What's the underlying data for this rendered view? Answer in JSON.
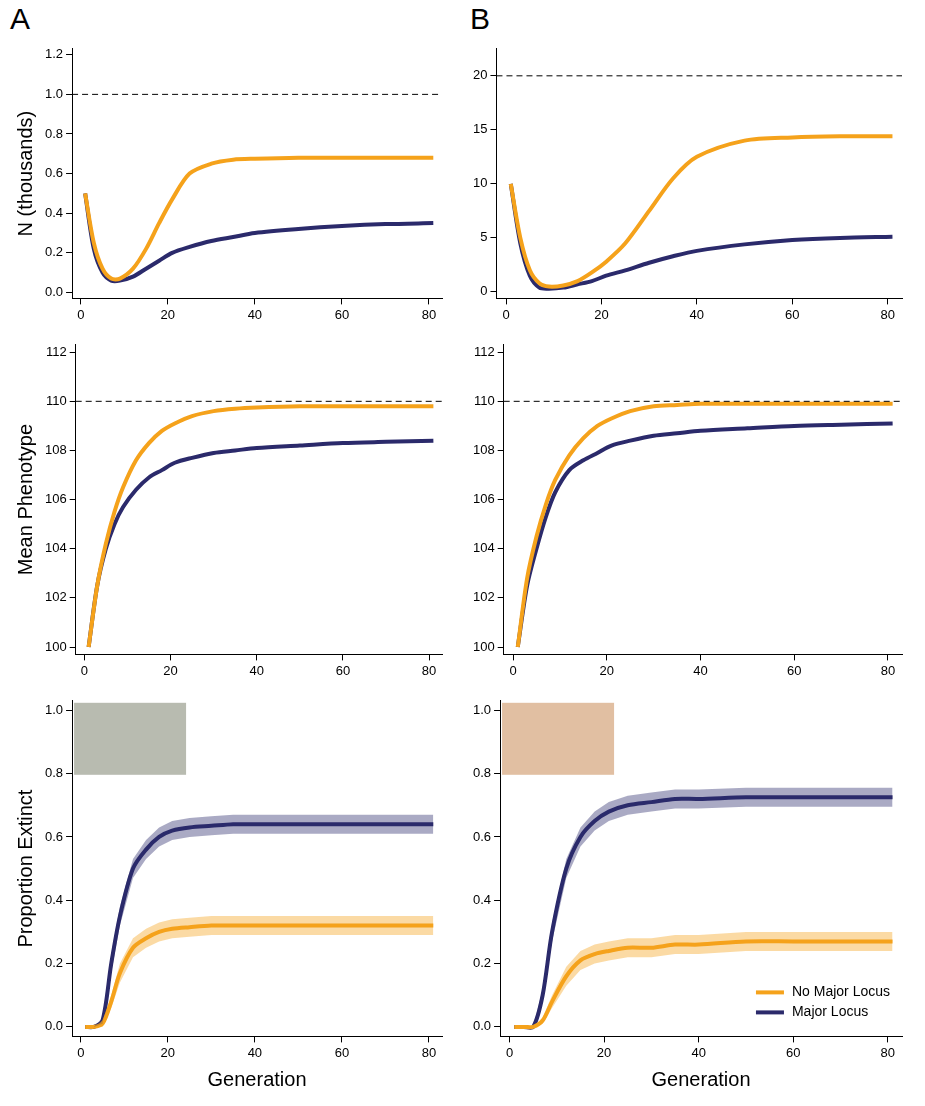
{
  "chart_data": [
    {
      "type": "line",
      "panel_label": "A",
      "y_label": "N (thousands)",
      "x": [
        1,
        3,
        5,
        7,
        9,
        12,
        15,
        18,
        21,
        25,
        30,
        35,
        40,
        50,
        60,
        70,
        81
      ],
      "xlim": [
        -2,
        83
      ],
      "xticks": [
        0,
        20,
        40,
        60,
        80
      ],
      "ylim": [
        -0.03,
        1.23
      ],
      "yticks": [
        {
          "value": 0,
          "label": "0.0"
        },
        {
          "value": 0.2,
          "label": "0.2"
        },
        {
          "value": 0.4,
          "label": "0.4"
        },
        {
          "value": 0.6,
          "label": "0.6"
        },
        {
          "value": 0.8,
          "label": "0.8"
        },
        {
          "value": 1,
          "label": "1.0"
        },
        {
          "value": 1.2,
          "label": "1.2"
        }
      ],
      "grid": false,
      "reference_lines": [
        {
          "y": 1,
          "line_style": "dashed",
          "color": "#000000"
        }
      ],
      "series": [
        {
          "color": "#f5a21b",
          "values": [
            0.5,
            0.25,
            0.12,
            0.07,
            0.07,
            0.12,
            0.22,
            0.35,
            0.47,
            0.6,
            0.65,
            0.67,
            0.675,
            0.68,
            0.68,
            0.68,
            0.68
          ]
        },
        {
          "color": "#2b2a6b",
          "values": [
            0.5,
            0.22,
            0.1,
            0.06,
            0.06,
            0.08,
            0.12,
            0.16,
            0.2,
            0.23,
            0.26,
            0.28,
            0.3,
            0.32,
            0.335,
            0.345,
            0.35
          ]
        }
      ]
    },
    {
      "type": "line",
      "panel_label": "B",
      "x": [
        1,
        3,
        5,
        7,
        9,
        12,
        15,
        18,
        21,
        25,
        30,
        35,
        40,
        50,
        60,
        70,
        81
      ],
      "xlim": [
        -2,
        83
      ],
      "xticks": [
        0,
        20,
        40,
        60,
        80
      ],
      "ylim": [
        -0.6,
        22.5
      ],
      "yticks": [
        0,
        5,
        10,
        15,
        20
      ],
      "grid": false,
      "reference_lines": [
        {
          "y": 20,
          "line_style": "dashed",
          "color": "#000000"
        }
      ],
      "series": [
        {
          "color": "#f5a21b",
          "values": [
            10,
            5,
            2,
            0.8,
            0.5,
            0.6,
            1.0,
            1.8,
            2.8,
            4.5,
            7.5,
            10.5,
            12.5,
            14,
            14.3,
            14.4,
            14.4
          ]
        },
        {
          "color": "#2b2a6b",
          "values": [
            10,
            4.5,
            1.5,
            0.4,
            0.3,
            0.4,
            0.7,
            1.0,
            1.5,
            2.0,
            2.7,
            3.3,
            3.8,
            4.4,
            4.8,
            5.0,
            5.1
          ]
        }
      ]
    },
    {
      "type": "line",
      "y_label": "Mean Phenotype",
      "x": [
        1,
        3,
        5,
        7,
        9,
        12,
        15,
        18,
        21,
        25,
        30,
        35,
        40,
        50,
        60,
        70,
        81
      ],
      "xlim": [
        -2,
        83
      ],
      "xticks": [
        0,
        20,
        40,
        60,
        80
      ],
      "ylim": [
        99.7,
        112.3
      ],
      "yticks": [
        100,
        102,
        104,
        106,
        108,
        110,
        112
      ],
      "grid": false,
      "reference_lines": [
        {
          "y": 110,
          "line_style": "dashed",
          "color": "#000000"
        }
      ],
      "series": [
        {
          "color": "#f5a21b",
          "values": [
            100,
            102.5,
            104.2,
            105.5,
            106.5,
            107.6,
            108.3,
            108.8,
            109.1,
            109.4,
            109.6,
            109.7,
            109.75,
            109.8,
            109.8,
            109.8,
            109.8
          ]
        },
        {
          "color": "#2b2a6b",
          "values": [
            100,
            102.5,
            104,
            105,
            105.7,
            106.4,
            106.9,
            107.2,
            107.5,
            107.7,
            107.9,
            108.0,
            108.1,
            108.2,
            108.3,
            108.35,
            108.4
          ]
        }
      ]
    },
    {
      "type": "line",
      "x": [
        1,
        3,
        5,
        7,
        9,
        12,
        15,
        18,
        21,
        25,
        30,
        35,
        40,
        50,
        60,
        70,
        81
      ],
      "xlim": [
        -2,
        83
      ],
      "xticks": [
        0,
        20,
        40,
        60,
        80
      ],
      "ylim": [
        99.7,
        112.3
      ],
      "yticks": [
        100,
        102,
        104,
        106,
        108,
        110,
        112
      ],
      "grid": false,
      "reference_lines": [
        {
          "y": 110,
          "line_style": "dashed",
          "color": "#000000"
        }
      ],
      "series": [
        {
          "color": "#f5a21b",
          "values": [
            100,
            102.8,
            104.5,
            105.8,
            106.8,
            107.8,
            108.5,
            109.0,
            109.3,
            109.6,
            109.8,
            109.85,
            109.9,
            109.9,
            109.9,
            109.9,
            109.9
          ]
        },
        {
          "color": "#2b2a6b",
          "values": [
            100,
            102.5,
            104,
            105.3,
            106.3,
            107.2,
            107.6,
            107.9,
            108.2,
            108.4,
            108.6,
            108.7,
            108.8,
            108.9,
            109.0,
            109.05,
            109.1
          ]
        }
      ]
    },
    {
      "type": "line",
      "y_label": "Proportion Extinct",
      "x_label": "Generation",
      "x": [
        1,
        3,
        5,
        7,
        9,
        12,
        15,
        18,
        21,
        25,
        30,
        35,
        40,
        50,
        60,
        70,
        81
      ],
      "xlim": [
        -2,
        83
      ],
      "xticks": [
        0,
        20,
        40,
        60,
        80
      ],
      "ylim": [
        -0.03,
        1.03
      ],
      "yticks": [
        {
          "value": 0,
          "label": "0.0"
        },
        {
          "value": 0.2,
          "label": "0.2"
        },
        {
          "value": 0.4,
          "label": "0.4"
        },
        {
          "value": 0.6,
          "label": "0.6"
        },
        {
          "value": 0.8,
          "label": "0.8"
        },
        {
          "value": 1,
          "label": "1.0"
        }
      ],
      "grid": false,
      "series": [
        {
          "color": "#f5a21b",
          "values": [
            0,
            0,
            0.01,
            0.08,
            0.17,
            0.25,
            0.28,
            0.3,
            0.31,
            0.315,
            0.32,
            0.32,
            0.32,
            0.32,
            0.32,
            0.32,
            0.32
          ],
          "lower": [
            0,
            0,
            0.0,
            0.06,
            0.14,
            0.22,
            0.25,
            0.27,
            0.28,
            0.285,
            0.29,
            0.29,
            0.29,
            0.29,
            0.29,
            0.29,
            0.29
          ],
          "upper": [
            0,
            0,
            0.02,
            0.1,
            0.2,
            0.28,
            0.31,
            0.33,
            0.34,
            0.345,
            0.35,
            0.35,
            0.35,
            0.35,
            0.35,
            0.35,
            0.35
          ]
        },
        {
          "color": "#2b2a6b",
          "values": [
            0,
            0,
            0.02,
            0.2,
            0.35,
            0.5,
            0.56,
            0.6,
            0.62,
            0.63,
            0.635,
            0.64,
            0.64,
            0.64,
            0.64,
            0.64,
            0.64
          ],
          "lower": [
            0,
            0,
            0.01,
            0.17,
            0.32,
            0.47,
            0.53,
            0.57,
            0.59,
            0.6,
            0.605,
            0.61,
            0.61,
            0.61,
            0.61,
            0.61,
            0.61
          ],
          "upper": [
            0,
            0,
            0.03,
            0.23,
            0.38,
            0.53,
            0.59,
            0.63,
            0.65,
            0.66,
            0.665,
            0.67,
            0.67,
            0.67,
            0.67,
            0.67,
            0.67
          ]
        }
      ]
    },
    {
      "type": "line",
      "x_label": "Generation",
      "x": [
        1,
        3,
        5,
        7,
        9,
        12,
        15,
        18,
        21,
        25,
        30,
        35,
        40,
        50,
        60,
        70,
        81
      ],
      "xlim": [
        -2,
        83
      ],
      "xticks": [
        0,
        20,
        40,
        60,
        80
      ],
      "ylim": [
        -0.03,
        1.03
      ],
      "yticks": [
        {
          "value": 0,
          "label": "0.0"
        },
        {
          "value": 0.2,
          "label": "0.2"
        },
        {
          "value": 0.4,
          "label": "0.4"
        },
        {
          "value": 0.6,
          "label": "0.6"
        },
        {
          "value": 0.8,
          "label": "0.8"
        },
        {
          "value": 1,
          "label": "1.0"
        }
      ],
      "grid": false,
      "legend": "lower right",
      "series": [
        {
          "name": "No Major Locus",
          "color": "#f5a21b",
          "values": [
            0,
            0,
            0,
            0.02,
            0.08,
            0.16,
            0.21,
            0.23,
            0.24,
            0.25,
            0.25,
            0.26,
            0.26,
            0.27,
            0.27,
            0.27,
            0.27
          ],
          "lower": [
            0,
            0,
            0,
            0.01,
            0.06,
            0.13,
            0.18,
            0.2,
            0.21,
            0.22,
            0.22,
            0.23,
            0.23,
            0.24,
            0.24,
            0.24,
            0.24
          ],
          "upper": [
            0,
            0,
            0,
            0.03,
            0.1,
            0.19,
            0.24,
            0.26,
            0.27,
            0.28,
            0.28,
            0.29,
            0.29,
            0.3,
            0.3,
            0.3,
            0.3
          ]
        },
        {
          "name": "Major Locus",
          "color": "#2b2a6b",
          "values": [
            0,
            0,
            0,
            0.1,
            0.3,
            0.5,
            0.6,
            0.65,
            0.68,
            0.7,
            0.71,
            0.72,
            0.72,
            0.725,
            0.725,
            0.725,
            0.725
          ],
          "lower": [
            0,
            0,
            0,
            0.08,
            0.27,
            0.47,
            0.57,
            0.62,
            0.65,
            0.67,
            0.68,
            0.69,
            0.69,
            0.695,
            0.695,
            0.695,
            0.695
          ],
          "upper": [
            0,
            0,
            0,
            0.12,
            0.33,
            0.53,
            0.63,
            0.68,
            0.71,
            0.73,
            0.74,
            0.75,
            0.75,
            0.755,
            0.755,
            0.755,
            0.755
          ]
        }
      ]
    }
  ]
}
